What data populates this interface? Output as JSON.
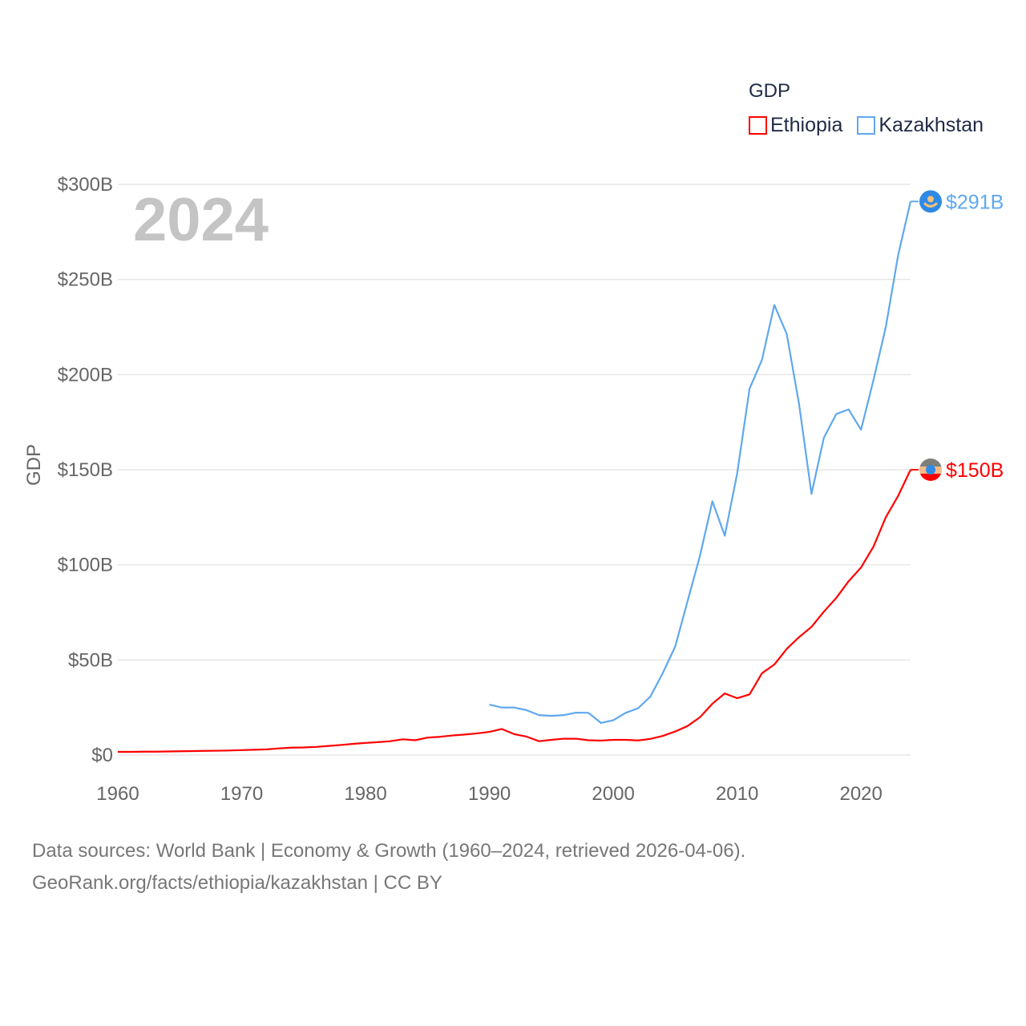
{
  "chart_data": {
    "type": "line",
    "title": "GDP",
    "year_label": "2024",
    "ylabel": "GDP",
    "xlabel": "",
    "xlim": [
      1960,
      2024
    ],
    "ylim": [
      0,
      300
    ],
    "x_ticks": [
      "1960",
      "1970",
      "1980",
      "1990",
      "2000",
      "2010",
      "2020"
    ],
    "y_ticks": [
      "$0",
      "$50B",
      "$100B",
      "$150B",
      "$200B",
      "$250B",
      "$300B"
    ],
    "y_tick_values": [
      0,
      50,
      100,
      150,
      200,
      250,
      300
    ],
    "legend_placement": "top-right",
    "grid": true,
    "series": [
      {
        "name": "Ethiopia",
        "color": "#ff0000",
        "end_label": "$150B",
        "start_year": 1960,
        "values": [
          1.7,
          1.7,
          1.8,
          1.8,
          1.9,
          2.0,
          2.1,
          2.2,
          2.3,
          2.4,
          2.6,
          2.8,
          3.0,
          3.5,
          3.9,
          4.0,
          4.3,
          4.8,
          5.3,
          5.9,
          6.4,
          6.8,
          7.3,
          8.3,
          7.8,
          9.2,
          9.6,
          10.3,
          10.8,
          11.4,
          12.2,
          13.7,
          11.0,
          9.7,
          7.3,
          8.0,
          8.6,
          8.6,
          7.8,
          7.6,
          8.0,
          8.0,
          7.7,
          8.5,
          10.1,
          12.4,
          15.3,
          19.9,
          27.0,
          32.4,
          29.9,
          31.9,
          43.0,
          47.6,
          55.8,
          62.0,
          67.4,
          75.4,
          82.6,
          91.4,
          98.6,
          109.5,
          125.0,
          136.3,
          150.0
        ]
      },
      {
        "name": "Kazakhstan",
        "color": "#5fa8ee",
        "end_label": "$291B",
        "start_year": 1990,
        "values": [
          26.5,
          25.0,
          25.0,
          23.6,
          21.0,
          20.6,
          21.0,
          22.3,
          22.2,
          16.9,
          18.3,
          22.2,
          24.6,
          30.8,
          43.2,
          57.1,
          81.0,
          104.8,
          133.4,
          115.3,
          148.0,
          192.6,
          207.7,
          236.6,
          221.4,
          184.4,
          137.3,
          166.8,
          179.3,
          181.7,
          171.0,
          197.0,
          225.0,
          262.9,
          291.0
        ]
      }
    ]
  },
  "source": {
    "line1": "Data sources: World Bank | Economy & Growth (1960–2024, retrieved 2026-04-06).",
    "line2": "GeoRank.org/facts/ethiopia/kazakhstan | CC BY"
  }
}
